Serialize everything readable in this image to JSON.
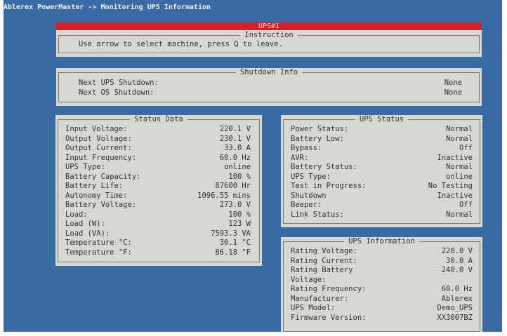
{
  "app_title": "Ablerex PowerMaster -> Monitoring UPS Information",
  "machine_tab": "UPS#1",
  "colors": {
    "background": "#3b6ba5",
    "panel": "#d5d9d1",
    "selected_bar": "#d3202e"
  },
  "instruction": {
    "title": "Instruction",
    "text": "Use arrow to select machine, press Q to leave."
  },
  "shutdown_info": {
    "title": "Shutdown Info",
    "rows": [
      {
        "label": "Next UPS Shutdown:",
        "value": "None"
      },
      {
        "label": "Next OS Shutdown:",
        "value": "None"
      }
    ]
  },
  "status_data": {
    "title": "Status Data",
    "rows": [
      {
        "label": "Input Voltage:",
        "value": "220.1 V"
      },
      {
        "label": "Output Voltage:",
        "value": "230.1 V"
      },
      {
        "label": "Output Current:",
        "value": "33.0 A"
      },
      {
        "label": "Input Frequency:",
        "value": "60.0 Hz"
      },
      {
        "label": "UPS Type:",
        "value": "online"
      },
      {
        "label": "Battery Capacity:",
        "value": "100 %"
      },
      {
        "label": "Battery Life:",
        "value": "87600 Hr"
      },
      {
        "label": "Autonomy Time:",
        "value": "1096.55 mins"
      },
      {
        "label": "Battery Voltage:",
        "value": "273.0 V"
      },
      {
        "label": "Load:",
        "value": "100 %"
      },
      {
        "label": "Load (W):",
        "value": "123 W"
      },
      {
        "label": "Load (VA):",
        "value": "7593.3 VA"
      },
      {
        "label": "Temperature °C:",
        "value": "30.1 °C"
      },
      {
        "label": "Temperature °F:",
        "value": "86.18 °F"
      }
    ]
  },
  "ups_status": {
    "title": "UPS Status",
    "rows": [
      {
        "label": "Power Status:",
        "value": "Normal"
      },
      {
        "label": "Battery Low:",
        "value": "Normal"
      },
      {
        "label": "Bypass:",
        "value": "Off"
      },
      {
        "label": "AVR:",
        "value": "Inactive"
      },
      {
        "label": "Battery Status:",
        "value": "Normal"
      },
      {
        "label": "UPS Type:",
        "value": "online"
      },
      {
        "label": "Test in Progress:",
        "value": "No Testing"
      },
      {
        "label": "Shutdown",
        "value": "Inactive"
      },
      {
        "label": "Beeper:",
        "value": "Off"
      },
      {
        "label": "Link Status:",
        "value": "Normal"
      }
    ]
  },
  "ups_information": {
    "title": "UPS Information",
    "rows": [
      {
        "label": "Rating Voltage:",
        "value": "220.0 V"
      },
      {
        "label": "Rating Current:",
        "value": "30.0 A"
      },
      {
        "label": "Rating Battery",
        "value": "240.0 V"
      },
      {
        "label": "Voltage:",
        "value": ""
      },
      {
        "label": "Rating Frequency:",
        "value": "60.0 Hz"
      },
      {
        "label": "Manufacturer:",
        "value": "Ablerex"
      },
      {
        "label": "UPS Model:",
        "value": "Demo_UPS"
      },
      {
        "label": "Firmware Version:",
        "value": "XX3007BZ"
      }
    ]
  }
}
